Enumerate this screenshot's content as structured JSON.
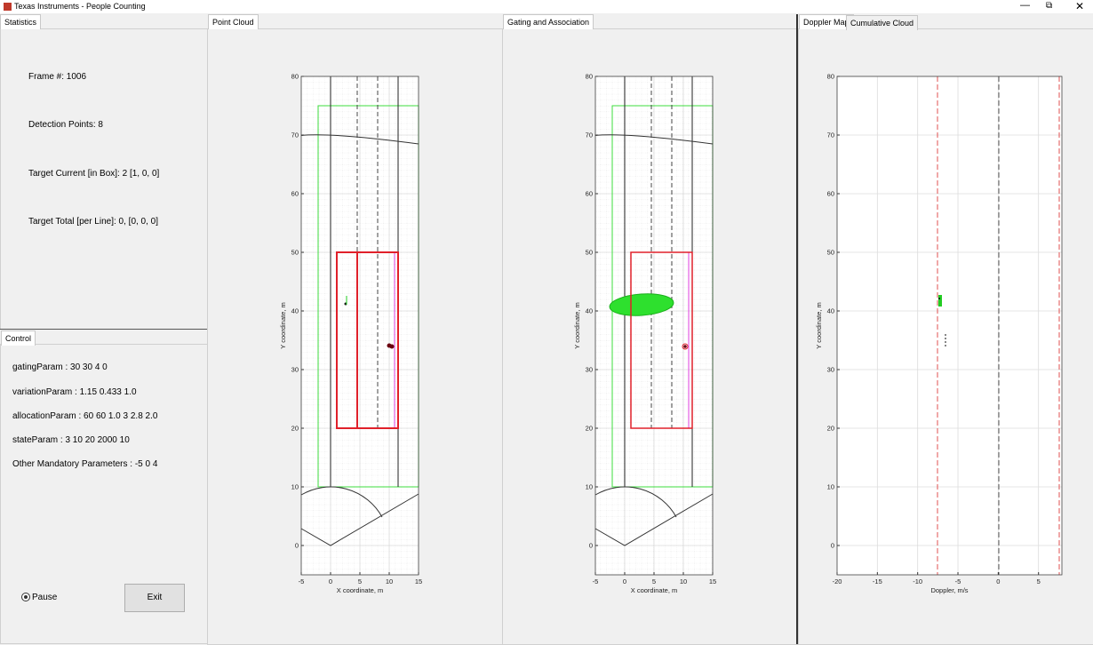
{
  "window": {
    "title": "Texas Instruments - People Counting"
  },
  "statistics": {
    "tab": "Statistics",
    "lines": [
      "Frame #: 1006",
      "Detection Points: 8",
      "Target Current [in Box]: 2 [1, 0, 0]",
      "Target Total [per Line]: 0, [0, 0, 0]"
    ]
  },
  "control": {
    "tab": "Control",
    "params": [
      "gatingParam : 30 30 4 0",
      "variationParam : 1.15 0.433 1.0",
      "allocationParam : 60 60 1.0 3 2.8 2.0",
      "stateParam : 3 10 20 2000 10",
      "Other Mandatory Parameters : -5 0 4"
    ],
    "pause": "Pause",
    "exit": "Exit"
  },
  "panels": [
    {
      "tabs": [
        "Point Cloud"
      ],
      "chart": {
        "type": "scatter",
        "xlabel": "X coordinate, m",
        "ylabel": "Y coordinate, m",
        "xlim": [
          -5,
          15
        ],
        "ylim": [
          -5,
          80
        ],
        "xticks": [
          -5,
          0,
          5,
          10,
          15
        ],
        "yticks": [
          0,
          10,
          20,
          30,
          40,
          50,
          60,
          70,
          80
        ],
        "grid": true
      }
    },
    {
      "tabs": [
        "Gating and Association"
      ],
      "chart": {
        "type": "scatter",
        "xlabel": "X coordinate, m",
        "ylabel": "Y coordinate, m",
        "xlim": [
          -5,
          15
        ],
        "ylim": [
          -5,
          80
        ],
        "xticks": [
          -5,
          0,
          5,
          10,
          15
        ],
        "yticks": [
          0,
          10,
          20,
          30,
          40,
          50,
          60,
          70,
          80
        ],
        "grid": true
      }
    },
    {
      "tabs": [
        "Doppler Map",
        "Cumulative Cloud"
      ],
      "chart": {
        "type": "scatter",
        "xlabel": "Doppler, m/s",
        "ylabel": "Y coordinate, m",
        "xlim": [
          -20,
          7.9
        ],
        "ylim": [
          -5,
          80
        ],
        "xticks": [
          -20,
          -15,
          -10,
          -5,
          0,
          5
        ],
        "yticks": [
          0,
          10,
          20,
          30,
          40,
          50,
          60,
          70,
          80
        ],
        "grid": true
      }
    }
  ]
}
